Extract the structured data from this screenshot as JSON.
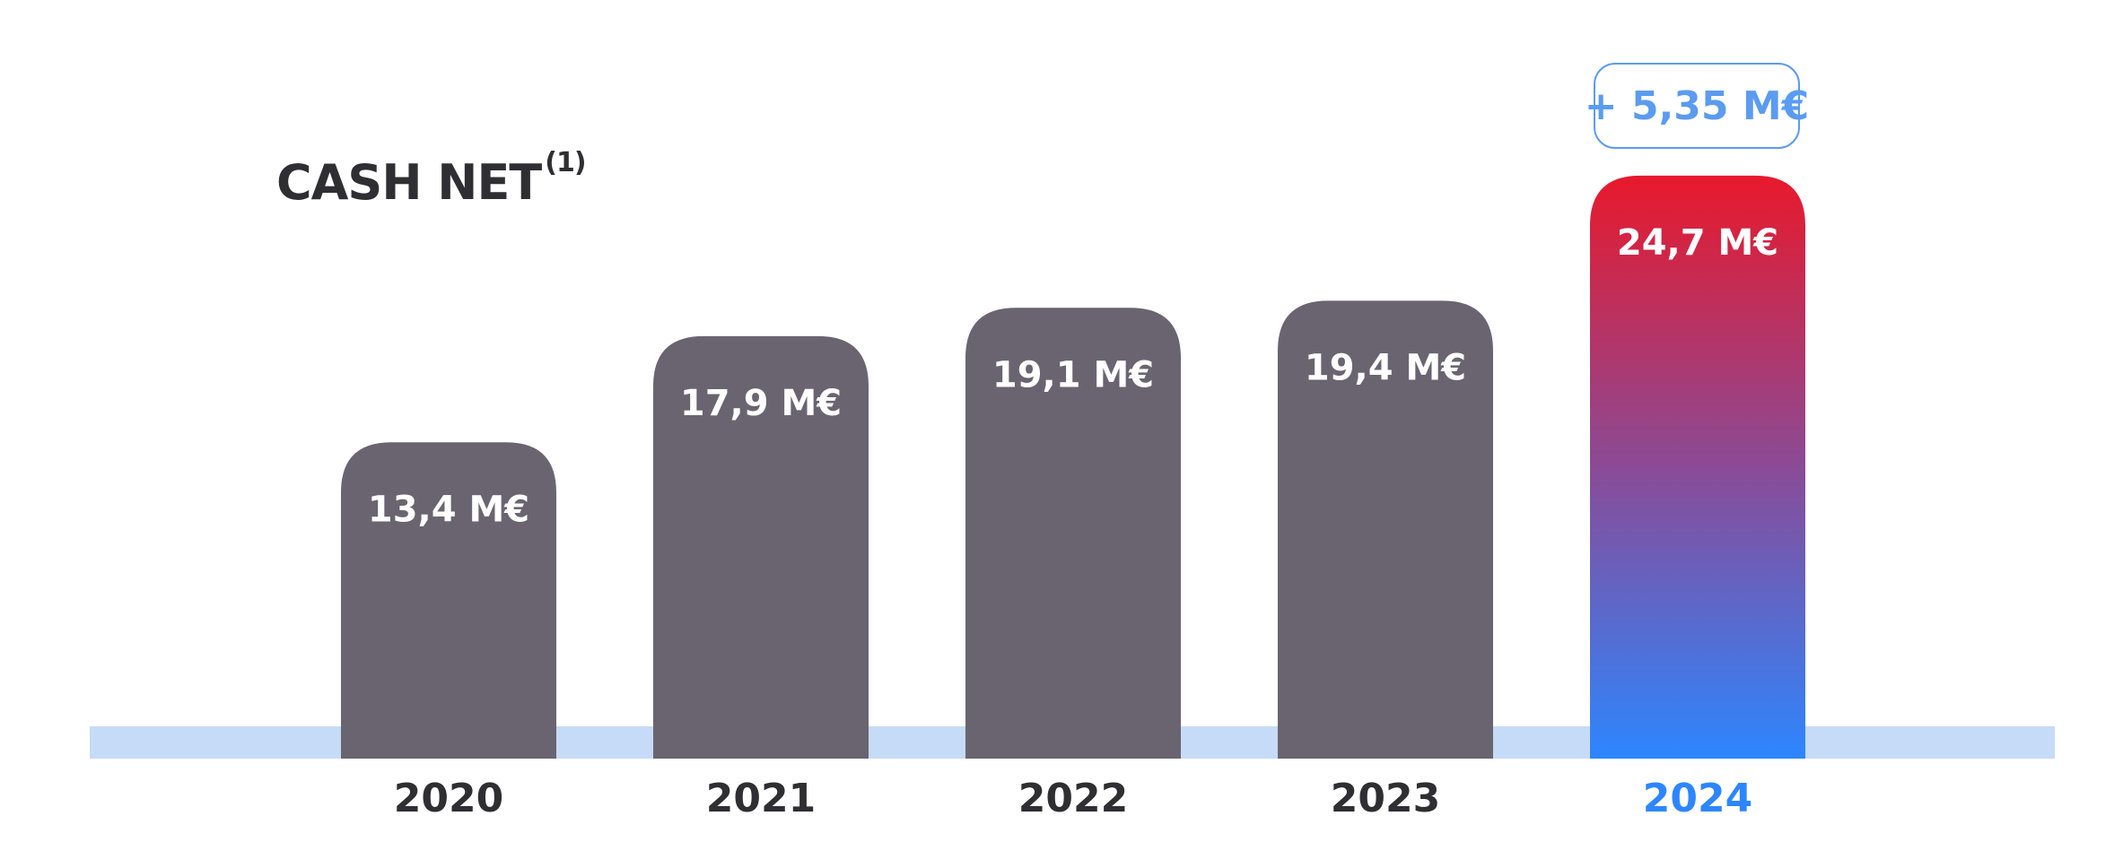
{
  "title": "CASH NET",
  "title_note": "(1)",
  "badge_text": "+ 5,35 M€",
  "colors": {
    "bar": "#6a6471",
    "highlight_top": "#e8192c",
    "highlight_mid": "#8a4b96",
    "highlight_bottom": "#2d86ff",
    "baseline": "#c5dbf7",
    "year_text": "#2f2e33",
    "highlight_year_text": "#2d86ff"
  },
  "chart_data": {
    "type": "bar",
    "title": "CASH NET",
    "categories": [
      "2020",
      "2021",
      "2022",
      "2023",
      "2024"
    ],
    "values": [
      13.4,
      17.9,
      19.1,
      19.4,
      24.7
    ],
    "value_labels": [
      "13,4 M€",
      "17,9 M€",
      "19,1 M€",
      "19,4 M€",
      "24,7 M€"
    ],
    "highlight_index": 4,
    "annotation": "+ 5,35 M€",
    "unit": "M€",
    "ylim": [
      0,
      25
    ]
  }
}
